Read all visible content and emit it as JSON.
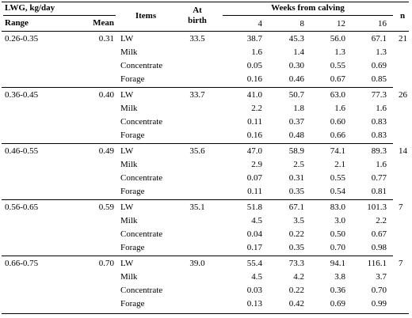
{
  "headers": {
    "lwg": "LWG, kg/day",
    "range": "Range",
    "mean": "Mean",
    "items": "Items",
    "at_birth_line1": "At",
    "at_birth_line2": "birth",
    "weeks_from_calving": "Weeks from calving",
    "n": "n",
    "weeks": [
      "4",
      "8",
      "12",
      "16"
    ]
  },
  "groups": [
    {
      "range": "0.26-0.35",
      "mean": "0.31",
      "at_birth": "33.5",
      "n": "21",
      "rows": [
        {
          "item": "LW",
          "values": [
            "38.7",
            "45.3",
            "56.0",
            "67.1"
          ]
        },
        {
          "item": "Milk",
          "values": [
            "1.6",
            "1.4",
            "1.3",
            "1.3"
          ]
        },
        {
          "item": "Concentrate",
          "values": [
            "0.05",
            "0.30",
            "0.55",
            "0.69"
          ]
        },
        {
          "item": "Forage",
          "values": [
            "0.16",
            "0.46",
            "0.67",
            "0.85"
          ]
        }
      ]
    },
    {
      "range": "0.36-0.45",
      "mean": "0.40",
      "at_birth": "33.7",
      "n": "26",
      "rows": [
        {
          "item": "LW",
          "values": [
            "41.0",
            "50.7",
            "63.0",
            "77.3"
          ]
        },
        {
          "item": "Milk",
          "values": [
            "2.2",
            "1.8",
            "1.6",
            "1.6"
          ]
        },
        {
          "item": "Concentrate",
          "values": [
            "0.11",
            "0.37",
            "0.60",
            "0.83"
          ]
        },
        {
          "item": "Forage",
          "values": [
            "0.16",
            "0.48",
            "0.66",
            "0.83"
          ]
        }
      ]
    },
    {
      "range": "0.46-0.55",
      "mean": "0.49",
      "at_birth": "35.6",
      "n": "14",
      "rows": [
        {
          "item": "LW",
          "values": [
            "47.0",
            "58.9",
            "74.1",
            "89.3"
          ]
        },
        {
          "item": "Milk",
          "values": [
            "2.9",
            "2.5",
            "2.1",
            "1.6"
          ]
        },
        {
          "item": "Concentrate",
          "values": [
            "0.07",
            "0.31",
            "0.55",
            "0.77"
          ]
        },
        {
          "item": "Forage",
          "values": [
            "0.11",
            "0.35",
            "0.54",
            "0.81"
          ]
        }
      ]
    },
    {
      "range": "0.56-0.65",
      "mean": "0.59",
      "at_birth": "35.1",
      "n": "7",
      "rows": [
        {
          "item": "LW",
          "values": [
            "51.8",
            "67.1",
            "83.0",
            "101.3"
          ]
        },
        {
          "item": "Milk",
          "values": [
            "4.5",
            "3.5",
            "3.0",
            "2.2"
          ]
        },
        {
          "item": "Concentrate",
          "values": [
            "0.04",
            "0.22",
            "0.50",
            "0.67"
          ]
        },
        {
          "item": "Forage",
          "values": [
            "0.17",
            "0.35",
            "0.70",
            "0.98"
          ]
        }
      ]
    },
    {
      "range": "0.66-0.75",
      "mean": "0.70",
      "at_birth": "39.0",
      "n": "7",
      "rows": [
        {
          "item": "LW",
          "values": [
            "55.4",
            "73.3",
            "94.1",
            "116.1"
          ]
        },
        {
          "item": "Milk",
          "values": [
            "4.5",
            "4.2",
            "3.8",
            "3.7"
          ]
        },
        {
          "item": "Concentrate",
          "values": [
            "0.03",
            "0.22",
            "0.36",
            "0.70"
          ]
        },
        {
          "item": "Forage",
          "values": [
            "0.13",
            "0.42",
            "0.69",
            "0.99"
          ]
        }
      ]
    }
  ]
}
